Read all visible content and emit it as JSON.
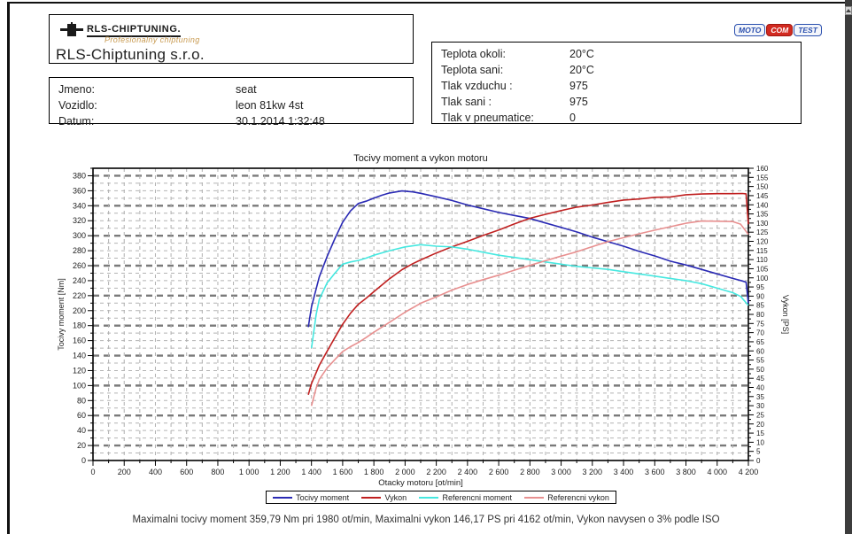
{
  "header": {
    "logo": {
      "brand": "RLS-CHIPTUNING.",
      "tagline": "Profesionalny chiptuning",
      "company": "RLS-Chiptuning s.r.o."
    },
    "customer": {
      "rows": [
        {
          "label": "Jmeno:",
          "value": "seat"
        },
        {
          "label": "Vozidlo:",
          "value": "leon 81kw 4st"
        },
        {
          "label": "Datum:",
          "value": "30.1.2014 1:32:48"
        }
      ]
    },
    "conditions": {
      "rows": [
        {
          "label": "Teplota okoli:",
          "value": "20°C"
        },
        {
          "label": "Teplota sani:",
          "value": "20°C"
        },
        {
          "label": "Tlak vzduchu :",
          "value": "975"
        },
        {
          "label": "Tlak sani :",
          "value": "975"
        },
        {
          "label": "Tlak v pneumatice:",
          "value": "0"
        }
      ]
    },
    "motocom": {
      "parts": [
        "MOTO",
        "COM",
        "TEST"
      ]
    }
  },
  "chart_data": {
    "type": "line",
    "title": "Tocivy moment a vykon motoru",
    "xlabel": "Otacky motoru [ot/min]",
    "ylabel_left": "Tocivy moment [Nm]",
    "ylabel_right": "Vykon [PS]",
    "x_min": 0,
    "x_max": 4200,
    "x_tick_step": 200,
    "x_minor_step": 100,
    "y_left_min": 0,
    "y_left_max": 390,
    "y_left_label_step": 20,
    "y_left_minor_step": 10,
    "y_left_label_top": 380,
    "y_right_min": 0,
    "y_right_max": 160,
    "y_right_label_step": 5,
    "grid": true,
    "legend_position": "bottom",
    "series": [
      {
        "name": "Tocivy moment",
        "axis": "left",
        "color": "#2a2ab4",
        "points": [
          [
            1380,
            178
          ],
          [
            1400,
            205
          ],
          [
            1450,
            245
          ],
          [
            1500,
            272
          ],
          [
            1550,
            296
          ],
          [
            1600,
            318
          ],
          [
            1650,
            333
          ],
          [
            1700,
            343
          ],
          [
            1750,
            346
          ],
          [
            1800,
            350
          ],
          [
            1850,
            354
          ],
          [
            1900,
            357
          ],
          [
            1980,
            359.8
          ],
          [
            2050,
            358.5
          ],
          [
            2100,
            356.5
          ],
          [
            2200,
            352
          ],
          [
            2300,
            347
          ],
          [
            2400,
            341
          ],
          [
            2500,
            336
          ],
          [
            2600,
            331
          ],
          [
            2700,
            327
          ],
          [
            2800,
            323
          ],
          [
            2900,
            317
          ],
          [
            3000,
            311
          ],
          [
            3100,
            305
          ],
          [
            3200,
            298
          ],
          [
            3300,
            292
          ],
          [
            3400,
            286
          ],
          [
            3500,
            279
          ],
          [
            3600,
            273
          ],
          [
            3700,
            266
          ],
          [
            3800,
            261
          ],
          [
            3900,
            255
          ],
          [
            4000,
            249
          ],
          [
            4100,
            243
          ],
          [
            4162,
            239.5
          ],
          [
            4185,
            238
          ],
          [
            4200,
            210
          ]
        ]
      },
      {
        "name": "Vykon",
        "axis": "right",
        "color": "#c02020",
        "points": [
          [
            1380,
            36
          ],
          [
            1400,
            42.1
          ],
          [
            1450,
            52.1
          ],
          [
            1500,
            59.8
          ],
          [
            1550,
            67.3
          ],
          [
            1600,
            74.6
          ],
          [
            1650,
            80.6
          ],
          [
            1700,
            85.5
          ],
          [
            1750,
            88.8
          ],
          [
            1800,
            92.4
          ],
          [
            1850,
            96
          ],
          [
            1900,
            99.5
          ],
          [
            1980,
            104.5
          ],
          [
            2050,
            107.8
          ],
          [
            2100,
            109.8
          ],
          [
            2200,
            113.6
          ],
          [
            2300,
            117
          ],
          [
            2400,
            120
          ],
          [
            2500,
            123.2
          ],
          [
            2600,
            126.2
          ],
          [
            2700,
            129.5
          ],
          [
            2800,
            132.6
          ],
          [
            2900,
            134.8
          ],
          [
            3000,
            136.8
          ],
          [
            3100,
            138.7
          ],
          [
            3200,
            139.9
          ],
          [
            3300,
            141.3
          ],
          [
            3400,
            142.6
          ],
          [
            3500,
            143.2
          ],
          [
            3600,
            144.1
          ],
          [
            3700,
            144.3
          ],
          [
            3800,
            145.5
          ],
          [
            3900,
            145.9
          ],
          [
            4000,
            146.1
          ],
          [
            4100,
            146.1
          ],
          [
            4162,
            146.17
          ],
          [
            4185,
            146
          ],
          [
            4200,
            129.3
          ]
        ]
      },
      {
        "name": "Referencni moment",
        "axis": "left",
        "color": "#46e8e0",
        "points": [
          [
            1400,
            150
          ],
          [
            1430,
            195
          ],
          [
            1450,
            215
          ],
          [
            1500,
            237
          ],
          [
            1550,
            250
          ],
          [
            1600,
            262
          ],
          [
            1650,
            265
          ],
          [
            1700,
            267
          ],
          [
            1750,
            270
          ],
          [
            1800,
            274
          ],
          [
            1900,
            280
          ],
          [
            2000,
            285
          ],
          [
            2100,
            288
          ],
          [
            2200,
            286
          ],
          [
            2300,
            285
          ],
          [
            2400,
            282
          ],
          [
            2500,
            278
          ],
          [
            2600,
            274
          ],
          [
            2700,
            271
          ],
          [
            2800,
            268
          ],
          [
            2900,
            265
          ],
          [
            3000,
            262
          ],
          [
            3100,
            259
          ],
          [
            3200,
            257
          ],
          [
            3300,
            255
          ],
          [
            3400,
            252
          ],
          [
            3500,
            249
          ],
          [
            3600,
            246
          ],
          [
            3700,
            243
          ],
          [
            3800,
            240
          ],
          [
            3900,
            236
          ],
          [
            4000,
            230
          ],
          [
            4100,
            224
          ],
          [
            4150,
            219
          ],
          [
            4200,
            207
          ]
        ]
      },
      {
        "name": "Referencni vykon",
        "axis": "right",
        "color": "#e89090",
        "points": [
          [
            1400,
            29.9
          ],
          [
            1430,
            39.7
          ],
          [
            1450,
            44.4
          ],
          [
            1500,
            50.6
          ],
          [
            1550,
            55.2
          ],
          [
            1600,
            59.7
          ],
          [
            1650,
            62.3
          ],
          [
            1700,
            64.6
          ],
          [
            1750,
            67.3
          ],
          [
            1800,
            70.2
          ],
          [
            1900,
            75.7
          ],
          [
            2000,
            81.2
          ],
          [
            2100,
            86.1
          ],
          [
            2200,
            89.6
          ],
          [
            2300,
            93.3
          ],
          [
            2400,
            96.4
          ],
          [
            2500,
            99
          ],
          [
            2600,
            101.5
          ],
          [
            2700,
            104.2
          ],
          [
            2800,
            106.8
          ],
          [
            2900,
            109.4
          ],
          [
            3000,
            111.9
          ],
          [
            3100,
            114.3
          ],
          [
            3200,
            117.1
          ],
          [
            3300,
            119.8
          ],
          [
            3400,
            122
          ],
          [
            3500,
            124.1
          ],
          [
            3600,
            126.1
          ],
          [
            3700,
            128
          ],
          [
            3800,
            129.9
          ],
          [
            3900,
            131.1
          ],
          [
            4000,
            131
          ],
          [
            4100,
            130.8
          ],
          [
            4150,
            129.4
          ],
          [
            4200,
            123.8
          ]
        ]
      }
    ],
    "annotations": {
      "max_torque": "359,79 Nm pri 1980 ot/min",
      "max_power": "146,17 PS pri 4162 ot/min",
      "iso_note": "Vykon navysen o 3% podle ISO"
    }
  },
  "legend": {
    "items": [
      {
        "label": "Tocivy moment"
      },
      {
        "label": "Vykon"
      },
      {
        "label": "Referencni moment"
      },
      {
        "label": "Referencni vykon"
      }
    ]
  },
  "footer": {
    "summary": "Maximalni tocivy moment 359,79 Nm pri 1980 ot/min,  Maximalni vykon 146,17 PS pri 4162 ot/min,  Vykon navysen o 3% podle ISO"
  }
}
